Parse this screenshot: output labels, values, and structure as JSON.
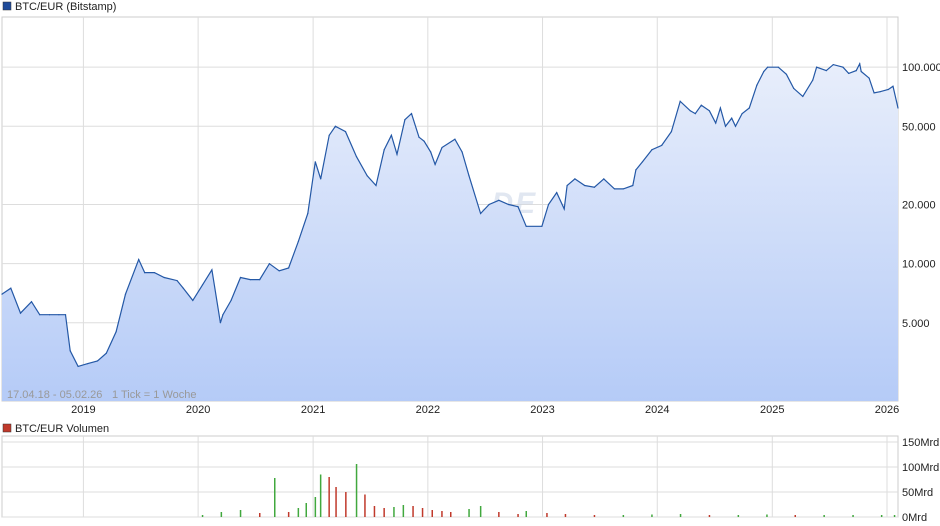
{
  "colors": {
    "line": "#2458a6",
    "area_top": "#e8eefb",
    "area_bottom": "#b5cbf7",
    "legend_price": "#1f4b9a",
    "legend_volume": "#c0392b",
    "vol_up": "#41a83e",
    "vol_down": "#c0392b",
    "grid": "#dddddd",
    "frame": "#cccccc"
  },
  "watermark": "ARIVA.DE",
  "chart_data": [
    {
      "type": "area",
      "title": "BTC/EUR (Bitstamp)",
      "range_label": "17.04.18 - 05.02.26",
      "tick_label": "1 Tick = 1 Woche",
      "x_ticks": [
        "2019",
        "2020",
        "2021",
        "2022",
        "2023",
        "2024",
        "2025",
        "2026"
      ],
      "y_ticks": [
        "5.000",
        "10.000",
        "20.000",
        "50.000",
        "100.000"
      ],
      "y_scale": "log",
      "ylim": [
        2000,
        180000
      ],
      "x_range": [
        "2018-04-17",
        "2026-02-05"
      ],
      "grid": true,
      "series": [
        {
          "name": "BTC/EUR (Bitstamp)",
          "x": [
            "2018-04-17",
            "2018-05-15",
            "2018-06-15",
            "2018-07-20",
            "2018-08-15",
            "2018-09-15",
            "2018-10-15",
            "2018-11-05",
            "2018-11-20",
            "2018-12-15",
            "2019-01-15",
            "2019-02-15",
            "2019-03-15",
            "2019-04-15",
            "2019-05-15",
            "2019-06-26",
            "2019-07-15",
            "2019-08-15",
            "2019-09-15",
            "2019-10-26",
            "2019-11-15",
            "2019-12-15",
            "2020-01-15",
            "2020-02-14",
            "2020-03-12",
            "2020-03-20",
            "2020-04-15",
            "2020-05-15",
            "2020-06-15",
            "2020-07-15",
            "2020-08-15",
            "2020-09-15",
            "2020-10-15",
            "2020-11-15",
            "2020-12-15",
            "2021-01-08",
            "2021-01-25",
            "2021-02-21",
            "2021-03-13",
            "2021-04-14",
            "2021-05-19",
            "2021-06-22",
            "2021-07-20",
            "2021-08-15",
            "2021-09-07",
            "2021-09-25",
            "2021-10-20",
            "2021-11-10",
            "2021-12-04",
            "2021-12-20",
            "2022-01-10",
            "2022-01-24",
            "2022-02-15",
            "2022-03-28",
            "2022-04-20",
            "2022-05-12",
            "2022-06-18",
            "2022-07-15",
            "2022-08-15",
            "2022-09-15",
            "2022-10-15",
            "2022-11-10",
            "2022-12-30",
            "2023-01-20",
            "2023-02-15",
            "2023-03-11",
            "2023-03-20",
            "2023-04-14",
            "2023-05-15",
            "2023-06-15",
            "2023-07-15",
            "2023-08-18",
            "2023-09-15",
            "2023-10-15",
            "2023-10-25",
            "2023-11-15",
            "2023-12-15",
            "2024-01-15",
            "2024-02-15",
            "2024-03-14",
            "2024-04-15",
            "2024-05-01",
            "2024-05-20",
            "2024-06-15",
            "2024-07-05",
            "2024-07-20",
            "2024-08-05",
            "2024-08-25",
            "2024-09-06",
            "2024-09-27",
            "2024-10-20",
            "2024-11-13",
            "2024-12-05",
            "2024-12-17",
            "2025-01-20",
            "2025-02-15",
            "2025-03-10",
            "2025-04-08",
            "2025-05-10",
            "2025-05-22",
            "2025-06-22",
            "2025-07-14",
            "2025-08-14",
            "2025-09-01",
            "2025-09-25",
            "2025-10-06",
            "2025-10-11",
            "2025-11-05",
            "2025-11-21",
            "2025-12-10",
            "2026-01-05",
            "2026-01-20",
            "2026-02-05"
          ],
          "values": [
            7000,
            7500,
            5600,
            6400,
            5500,
            5500,
            5500,
            5500,
            3600,
            3000,
            3100,
            3200,
            3500,
            4500,
            7000,
            10500,
            9000,
            9000,
            8500,
            8200,
            7500,
            6500,
            7800,
            9300,
            5000,
            5500,
            6500,
            8500,
            8300,
            8300,
            10000,
            9200,
            9500,
            13000,
            18000,
            33000,
            27000,
            45000,
            50000,
            47000,
            35000,
            28000,
            25000,
            38000,
            45000,
            36000,
            54000,
            58000,
            44000,
            42000,
            37000,
            32000,
            39000,
            43000,
            37000,
            28000,
            18000,
            20000,
            21000,
            20000,
            19500,
            15500,
            15500,
            20000,
            23000,
            19000,
            25000,
            27000,
            25000,
            24500,
            27000,
            24000,
            24000,
            25000,
            30000,
            33000,
            38000,
            40000,
            47000,
            67000,
            60000,
            58000,
            64000,
            60000,
            52000,
            62000,
            50000,
            55000,
            50000,
            58000,
            62000,
            81000,
            95000,
            100000,
            100000,
            92000,
            78000,
            71000,
            86000,
            100000,
            96000,
            103000,
            100000,
            93000,
            96000,
            104000,
            95000,
            88000,
            74000,
            75000,
            77000,
            80000,
            62000
          ]
        }
      ]
    },
    {
      "type": "bar",
      "title": "BTC/EUR Volumen",
      "y_ticks": [
        "0Mrd",
        "50Mrd",
        "100Mrd",
        "150Mrd"
      ],
      "ylim": [
        0,
        150
      ],
      "series": [
        {
          "name": "BTC/EUR Volumen",
          "x": [
            "2020-01-15",
            "2020-03-15",
            "2020-05-15",
            "2020-07-15",
            "2020-09-01",
            "2020-10-15",
            "2020-11-15",
            "2020-12-10",
            "2021-01-08",
            "2021-01-25",
            "2021-02-21",
            "2021-03-15",
            "2021-04-15",
            "2021-05-19",
            "2021-06-15",
            "2021-07-15",
            "2021-08-15",
            "2021-09-15",
            "2021-10-15",
            "2021-11-15",
            "2021-12-15",
            "2022-01-15",
            "2022-02-15",
            "2022-03-15",
            "2022-05-12",
            "2022-06-18",
            "2022-08-15",
            "2022-10-15",
            "2022-11-10",
            "2023-01-15",
            "2023-03-15",
            "2023-06-15",
            "2023-09-15",
            "2023-12-15",
            "2024-03-15",
            "2024-06-15",
            "2024-09-15",
            "2024-12-15",
            "2025-03-15",
            "2025-06-15",
            "2025-09-15",
            "2025-12-15",
            "2026-01-25"
          ],
          "values": [
            4,
            10,
            14,
            8,
            78,
            10,
            18,
            28,
            40,
            85,
            80,
            60,
            50,
            106,
            45,
            22,
            18,
            20,
            24,
            22,
            18,
            14,
            12,
            10,
            16,
            22,
            10,
            6,
            12,
            8,
            6,
            4,
            4,
            5,
            6,
            4,
            4,
            5,
            4,
            4,
            4,
            4,
            4
          ]
        }
      ]
    }
  ]
}
